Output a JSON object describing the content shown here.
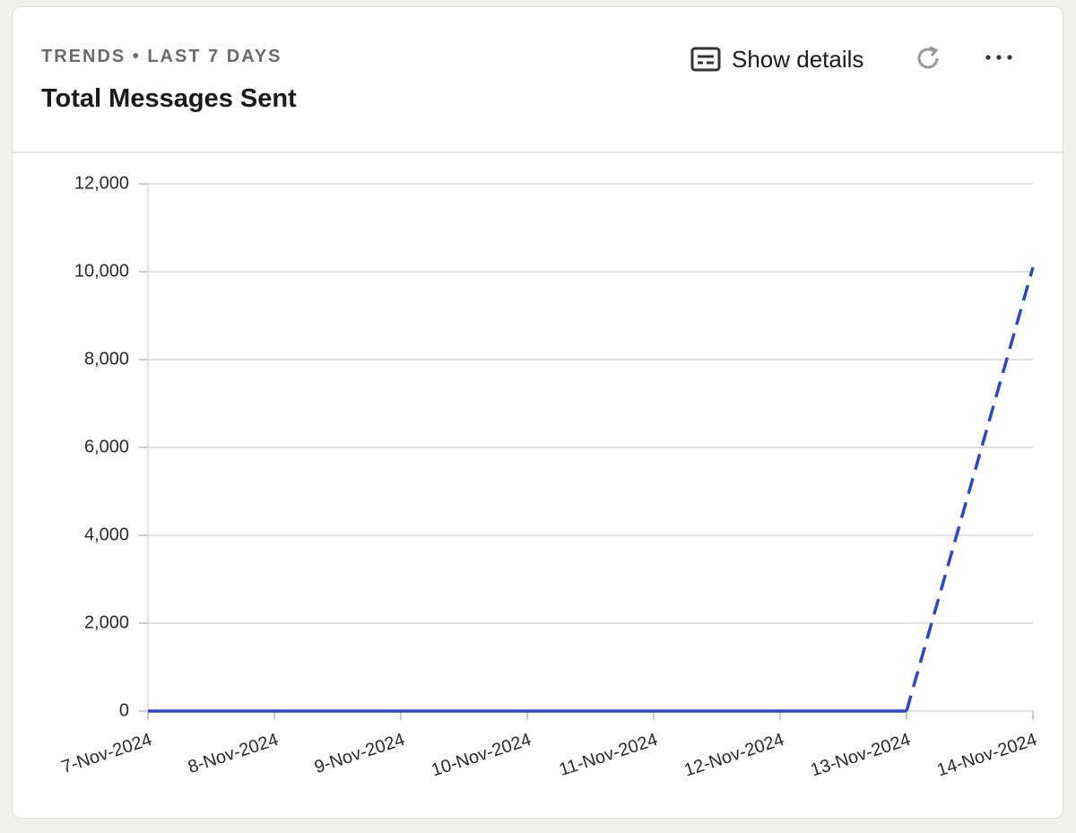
{
  "toolbar": {
    "show_details": "Show details"
  },
  "chart_data": {
    "type": "line",
    "subtitle": "TRENDS • LAST 7 DAYS",
    "title": "Total Messages Sent",
    "categories": [
      "7-Nov-2024",
      "8-Nov-2024",
      "9-Nov-2024",
      "10-Nov-2024",
      "11-Nov-2024",
      "12-Nov-2024",
      "13-Nov-2024",
      "14-Nov-2024"
    ],
    "values": [
      0,
      0,
      0,
      0,
      0,
      0,
      0,
      10100
    ],
    "color": "#2b45d8",
    "dashed_last": true,
    "ylim": [
      0,
      12000
    ],
    "yticks": [
      0,
      {
        "value": 2000,
        "label": "2,000"
      },
      {
        "value": 4000,
        "label": "4,000"
      },
      {
        "value": 6000,
        "label": "6,000"
      },
      {
        "value": 8000,
        "label": "8,000"
      },
      {
        "value": 10000,
        "label": "10,000"
      },
      {
        "value": 12000,
        "label": "12,000"
      }
    ],
    "grid": true
  }
}
